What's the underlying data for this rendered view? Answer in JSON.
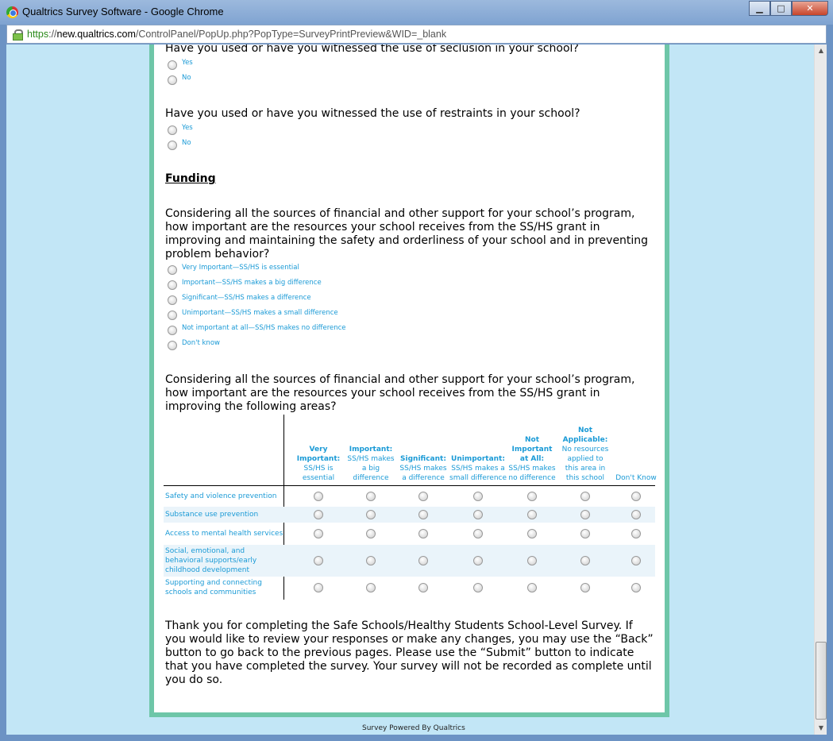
{
  "window": {
    "title": "Qualtrics Survey Software - Google Chrome",
    "minimize": "▁",
    "maximize": "□",
    "close": "✕"
  },
  "address": {
    "scheme": "https",
    "sep": "://",
    "host": "new.qualtrics.com",
    "path": "/ControlPanel/PopUp.php?PopType=SurveyPrintPreview&WID=_blank"
  },
  "questions": {
    "seclusion": {
      "text": "Have you used or have you witnessed the use of seclusion in your school?",
      "options": [
        "Yes",
        "No"
      ]
    },
    "restraints": {
      "text": "Have you used or have you witnessed the use of restraints in your school?",
      "options": [
        "Yes",
        "No"
      ]
    },
    "section": "Funding",
    "funding": {
      "text": "Considering all the sources of financial and other support for your school’s program, how important are the resources your school receives from the SS/HS grant in improving and maintaining the safety and orderliness of your school and in preventing problem behavior?",
      "options": [
        "Very Important—SS/HS is essential",
        "Important—SS/HS makes a big difference",
        "Significant—SS/HS makes a difference",
        "Unimportant—SS/HS makes a small difference",
        "Not important at all—SS/HS makes no difference",
        "Don't know"
      ]
    },
    "areas": {
      "text": "Considering all the sources of financial and other support for your school’s program, how important are the resources your school receives from the SS/HS grant in improving the following areas?",
      "columns": [
        {
          "bold": "Very Important:",
          "rest": "SS/HS is essential"
        },
        {
          "bold": "Important:",
          "rest": "SS/HS makes a big difference"
        },
        {
          "bold": "Significant:",
          "rest": "SS/HS makes a difference"
        },
        {
          "bold": "Unimportant:",
          "rest": "SS/HS makes a small difference"
        },
        {
          "bold": "Not Important at All:",
          "rest": "SS/HS makes no difference"
        },
        {
          "bold": "Not Applicable:",
          "rest": "No resources applied to this area in this school"
        },
        {
          "bold": "",
          "rest": "Don't Know"
        }
      ],
      "rows": [
        "Safety and violence prevention",
        "Substance use prevention",
        "Access to mental health services",
        "Social, emotional, and behavioral supports/early childhood development",
        "Supporting and connecting schools and communities"
      ]
    },
    "closing": "Thank you for completing the Safe Schools/Healthy Students School-Level Survey. If you would like to review your responses or make any changes, you may use the “Back” button to go back to the previous pages. Please use the “Submit” button to indicate that you have completed the survey. Your survey will not be recorded as complete until you do so."
  },
  "footer": "Survey Powered By Qualtrics"
}
